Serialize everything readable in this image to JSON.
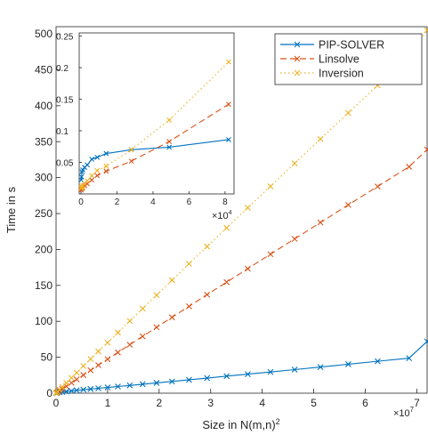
{
  "chart_data": [
    {
      "type": "line",
      "xlabel": "Size in N(m,n)",
      "xlabel_sup": "2",
      "ylabel": "Time in s",
      "x_scale_label": "×10",
      "x_scale_exp": "7",
      "xlim": [
        0,
        72000000
      ],
      "ylim": [
        0,
        510
      ],
      "xticks": [
        0,
        10000000,
        20000000,
        30000000,
        40000000,
        50000000,
        60000000,
        70000000
      ],
      "xtick_labels": [
        "0",
        "1",
        "2",
        "3",
        "4",
        "5",
        "6",
        "7"
      ],
      "yticks": [
        0,
        50,
        100,
        150,
        200,
        250,
        300,
        350,
        400,
        450,
        500
      ],
      "ytick_labels": [
        "0",
        "50",
        "100",
        "150",
        "200",
        "250",
        "300",
        "350",
        "400",
        "450",
        "500"
      ],
      "legend_position": "top-right",
      "series": [
        {
          "name": "PIP-SOLVER",
          "color": "#0072BD",
          "linestyle": "solid",
          "marker": "x",
          "x": [
            0,
            100000,
            300000,
            700000,
            1200000,
            2000000,
            3000000,
            4000000,
            5300000,
            6700000,
            8200000,
            10000000,
            12000000,
            14300000,
            16800000,
            19500000,
            22500000,
            25800000,
            29300000,
            33100000,
            37200000,
            41600000,
            46300000,
            51300000,
            56700000,
            62400000,
            68500000,
            72000000
          ],
          "y": [
            0,
            0.5,
            0.9,
            1.3,
            1.8,
            2.4,
            3.2,
            4.0,
            4.9,
            5.8,
            6.8,
            8.0,
            9.3,
            10.8,
            12.5,
            14.3,
            16.3,
            18.6,
            21.0,
            23.7,
            26.5,
            29.5,
            32.8,
            36.4,
            40.3,
            44.4,
            48.8,
            72.0
          ]
        },
        {
          "name": "Linsolve",
          "color": "#D95319",
          "linestyle": "dashed",
          "marker": "x",
          "x": [
            0,
            100000,
            300000,
            700000,
            1200000,
            2000000,
            3000000,
            4000000,
            5300000,
            6700000,
            8200000,
            10000000,
            12000000,
            14300000,
            16800000,
            19500000,
            22500000,
            25800000,
            29300000,
            33100000,
            37200000,
            41600000,
            46300000,
            51300000,
            56700000,
            62400000,
            68500000,
            72000000
          ],
          "y": [
            0,
            0.5,
            1.5,
            3.3,
            5.8,
            9.6,
            14.4,
            19.2,
            25.3,
            31.9,
            39.0,
            47.3,
            56.7,
            67.5,
            79.1,
            91.7,
            105.6,
            120.9,
            137.1,
            154.5,
            173.3,
            193.4,
            214.8,
            237.5,
            262.0,
            287.7,
            315.1,
            339.0
          ]
        },
        {
          "name": "Inversion",
          "color": "#EDB120",
          "linestyle": "dotted",
          "marker": "x",
          "x": [
            0,
            100000,
            300000,
            700000,
            1200000,
            2000000,
            3000000,
            4000000,
            5300000,
            6700000,
            8200000,
            10000000,
            12000000,
            14300000,
            16800000,
            19500000,
            22500000,
            25800000,
            29300000,
            33100000,
            37200000,
            41600000,
            46300000,
            51300000,
            56700000,
            62400000,
            68500000,
            72000000
          ],
          "y": [
            0,
            0.7,
            2.2,
            5.0,
            8.6,
            14.3,
            21.4,
            28.5,
            37.7,
            47.5,
            58.1,
            70.4,
            84.4,
            100.4,
            117.8,
            136.5,
            157.3,
            180.1,
            204.1,
            230.1,
            258.1,
            288.0,
            319.8,
            353.7,
            390.1,
            428.4,
            469.1,
            505.0
          ]
        }
      ]
    },
    {
      "type": "line",
      "xlabel": "",
      "ylabel": "",
      "x_scale_label": "×10",
      "x_scale_exp": "4",
      "xlim": [
        -1000,
        85000
      ],
      "ylim": [
        0,
        0.255
      ],
      "xticks": [
        0,
        20000,
        40000,
        60000,
        80000
      ],
      "xtick_labels": [
        "0",
        "2",
        "4",
        "6",
        "8"
      ],
      "yticks": [
        0.05,
        0.1,
        0.15,
        0.2,
        0.25
      ],
      "ytick_labels": [
        "0.05",
        "0.1",
        "0.15",
        "0.2",
        "0.25"
      ],
      "series": [
        {
          "name": "PIP-SOLVER",
          "color": "#0072BD",
          "linestyle": "solid",
          "marker": "x",
          "x": [
            100,
            300,
            600,
            1000,
            2000,
            3500,
            6000,
            9000,
            14000,
            28000,
            49000,
            82000
          ],
          "y": [
            0.022,
            0.027,
            0.035,
            0.038,
            0.042,
            0.046,
            0.055,
            0.058,
            0.064,
            0.07,
            0.074,
            0.086
          ]
        },
        {
          "name": "Linsolve",
          "color": "#D95319",
          "linestyle": "dashed",
          "marker": "x",
          "x": [
            100,
            300,
            600,
            1000,
            2000,
            3500,
            6000,
            9000,
            14000,
            28000,
            49000,
            82000
          ],
          "y": [
            0.006,
            0.008,
            0.009,
            0.01,
            0.013,
            0.016,
            0.022,
            0.029,
            0.036,
            0.052,
            0.083,
            0.142
          ]
        },
        {
          "name": "Inversion",
          "color": "#EDB120",
          "linestyle": "dotted",
          "marker": "x",
          "x": [
            100,
            300,
            600,
            1000,
            2000,
            3500,
            6000,
            9000,
            14000,
            28000,
            49000,
            82000
          ],
          "y": [
            0.009,
            0.01,
            0.011,
            0.013,
            0.016,
            0.021,
            0.029,
            0.037,
            0.044,
            0.07,
            0.117,
            0.209
          ]
        }
      ]
    }
  ]
}
